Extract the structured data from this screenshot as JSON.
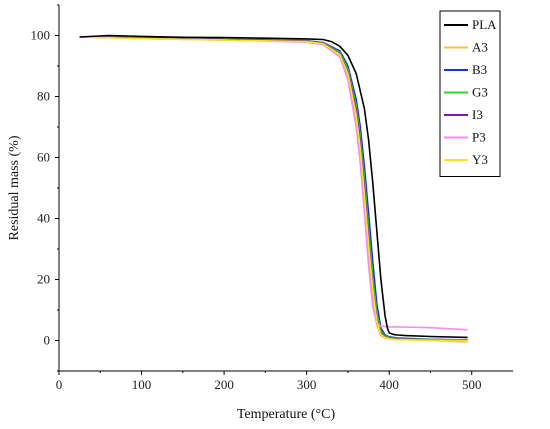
{
  "chart_data": {
    "type": "line",
    "title": "",
    "xlabel": "Temperature (°C)",
    "ylabel": "Residual mass (%)",
    "xlim": [
      0,
      550
    ],
    "ylim": [
      -10,
      110
    ],
    "x_ticks": [
      0,
      100,
      200,
      300,
      400,
      500
    ],
    "y_ticks": [
      0,
      20,
      40,
      60,
      80,
      100
    ],
    "grid": false,
    "legend_position": "top-right",
    "series": [
      {
        "name": "PLA",
        "color": "#000000",
        "x": [
          25,
          60,
          100,
          150,
          200,
          250,
          300,
          320,
          330,
          340,
          350,
          360,
          370,
          375,
          380,
          385,
          390,
          395,
          398,
          400,
          405,
          410,
          420,
          450,
          495
        ],
        "y": [
          99.5,
          100,
          99.7,
          99.4,
          99.3,
          99.1,
          98.9,
          98.7,
          98.0,
          96.5,
          93.5,
          87.5,
          76.0,
          66.0,
          52.0,
          36.0,
          20.0,
          8.0,
          4.0,
          2.5,
          2.0,
          1.8,
          1.6,
          1.3,
          1.0
        ]
      },
      {
        "name": "A3",
        "color": "#f5c242",
        "x": [
          25,
          100,
          200,
          300,
          320,
          340,
          350,
          360,
          365,
          370,
          375,
          380,
          385,
          390,
          395,
          400,
          410,
          450,
          495
        ],
        "y": [
          99.5,
          99.0,
          98.5,
          98.0,
          97.3,
          93.5,
          86.5,
          71.0,
          59.0,
          44.0,
          28.0,
          14.0,
          5.0,
          1.5,
          0.8,
          0.5,
          0.3,
          0.0,
          -0.5
        ]
      },
      {
        "name": "B3",
        "color": "#1a2fd6",
        "x": [
          25,
          100,
          200,
          300,
          320,
          340,
          350,
          360,
          365,
          370,
          375,
          380,
          385,
          390,
          395,
          400,
          410,
          450,
          495
        ],
        "y": [
          99.5,
          99.2,
          98.8,
          98.3,
          97.7,
          95.0,
          90.0,
          79.0,
          70.0,
          57.0,
          42.0,
          26.0,
          12.0,
          4.0,
          1.8,
          1.2,
          0.8,
          0.4,
          0.2
        ]
      },
      {
        "name": "G3",
        "color": "#2bd62b",
        "x": [
          25,
          100,
          200,
          300,
          320,
          340,
          350,
          360,
          365,
          370,
          375,
          380,
          385,
          390,
          395,
          400,
          410,
          450,
          495
        ],
        "y": [
          99.5,
          99.2,
          98.8,
          98.3,
          97.6,
          94.5,
          89.0,
          77.0,
          67.0,
          53.0,
          37.0,
          21.0,
          9.0,
          3.0,
          1.5,
          1.0,
          0.6,
          0.3,
          0.1
        ]
      },
      {
        "name": "I3",
        "color": "#7a1ab0",
        "x": [
          25,
          100,
          200,
          300,
          320,
          340,
          350,
          360,
          365,
          370,
          375,
          380,
          385,
          390,
          395,
          400,
          410,
          450,
          495
        ],
        "y": [
          99.5,
          99.2,
          98.7,
          98.2,
          97.5,
          94.0,
          88.0,
          75.5,
          65.0,
          50.0,
          34.0,
          18.0,
          7.0,
          2.5,
          1.2,
          0.8,
          0.5,
          0.2,
          0.1
        ]
      },
      {
        "name": "P3",
        "color": "#f58cf0",
        "x": [
          25,
          100,
          200,
          300,
          320,
          340,
          350,
          360,
          365,
          370,
          375,
          380,
          385,
          390,
          400,
          420,
          450,
          495
        ],
        "y": [
          99.5,
          99.0,
          98.5,
          97.8,
          97.0,
          93.0,
          85.5,
          70.0,
          58.0,
          42.0,
          25.0,
          11.0,
          5.5,
          4.7,
          4.5,
          4.4,
          4.2,
          3.5
        ]
      },
      {
        "name": "Y3",
        "color": "#f5e51c",
        "x": [
          25,
          100,
          200,
          300,
          320,
          340,
          350,
          360,
          365,
          370,
          375,
          380,
          385,
          390,
          395,
          400,
          410,
          450,
          495
        ],
        "y": [
          99.5,
          99.0,
          98.5,
          98.0,
          97.3,
          93.8,
          87.5,
          74.0,
          63.0,
          48.0,
          32.0,
          17.0,
          6.5,
          2.0,
          1.0,
          0.6,
          0.3,
          0.1,
          0.0
        ]
      }
    ]
  }
}
